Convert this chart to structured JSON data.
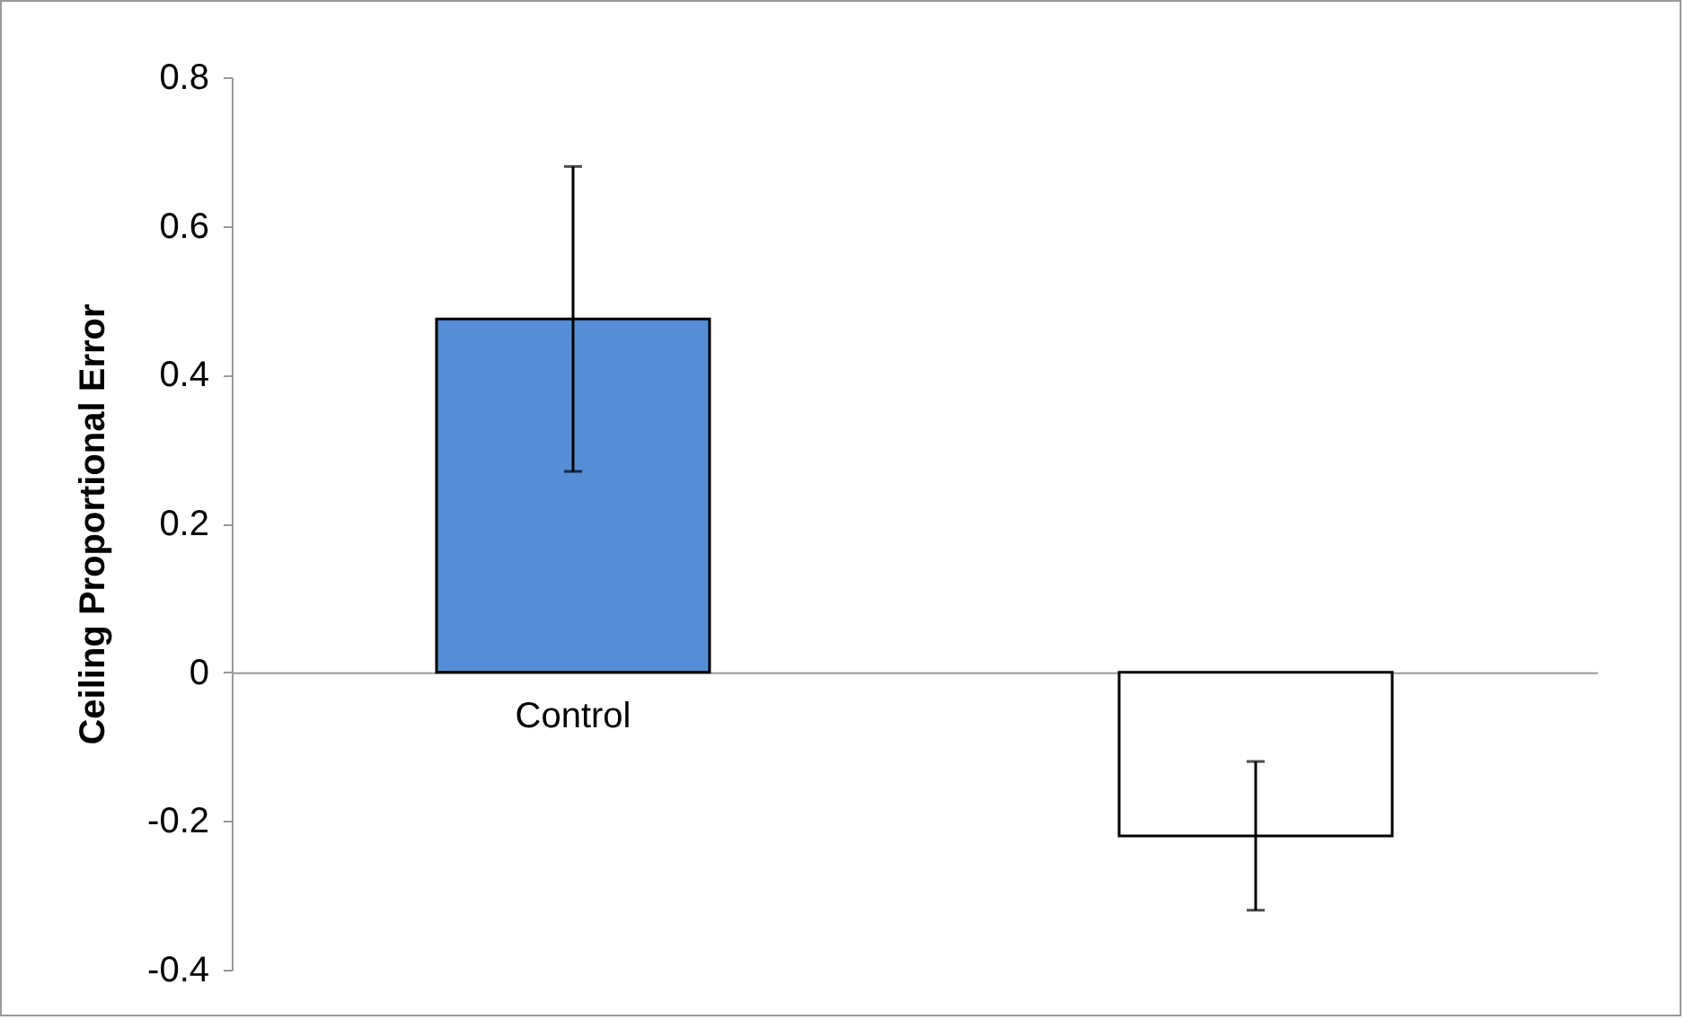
{
  "chart_data": {
    "type": "bar",
    "ylabel": "Ceiling Proportional Error",
    "categories": [
      "Control",
      null
    ],
    "values": [
      0.475,
      -0.22
    ],
    "colors": [
      "#558ed5",
      "#ffffff"
    ],
    "errors": [
      0.205,
      0.1
    ],
    "ylim": [
      -0.4,
      0.8
    ],
    "yticks": [
      -0.4,
      -0.2,
      {
        "value": 0,
        "label": "0"
      },
      0.2,
      0.4,
      0.6,
      0.8
    ],
    "legend": false
  }
}
